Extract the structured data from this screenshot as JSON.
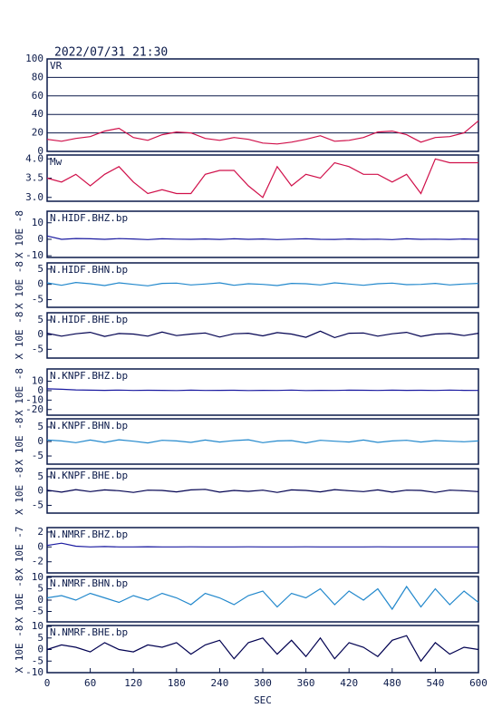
{
  "header": {
    "title": "2022/07/31 21:30"
  },
  "chart_data": [
    {
      "type": "line",
      "title": "VR",
      "ylim": [
        0,
        100
      ],
      "yticks": [
        0,
        20,
        40,
        60,
        80,
        100
      ],
      "grid": true,
      "xlim": [
        0,
        600
      ],
      "x": [
        0,
        20,
        40,
        60,
        80,
        100,
        120,
        140,
        160,
        180,
        200,
        220,
        240,
        260,
        280,
        300,
        320,
        340,
        360,
        380,
        400,
        420,
        440,
        460,
        480,
        500,
        520,
        540,
        560,
        580,
        600
      ],
      "series": [
        {
          "color": "#d0104a",
          "values": [
            13,
            11,
            14,
            16,
            22,
            25,
            15,
            12,
            18,
            21,
            20,
            14,
            12,
            15,
            13,
            9,
            8,
            10,
            13,
            17,
            11,
            12,
            15,
            21,
            22,
            18,
            10,
            15,
            16,
            20,
            33
          ]
        }
      ]
    },
    {
      "type": "line",
      "title": "Mw",
      "ylim": [
        2.9,
        4.1
      ],
      "yticks": [
        {
          "value": 3,
          "label": "3.0"
        },
        3.5,
        {
          "value": 4,
          "label": "4.0"
        }
      ],
      "grid": false,
      "xlim": [
        0,
        600
      ],
      "x": [
        0,
        20,
        40,
        60,
        80,
        100,
        120,
        140,
        160,
        180,
        200,
        220,
        240,
        260,
        280,
        300,
        320,
        340,
        360,
        380,
        400,
        420,
        440,
        460,
        480,
        500,
        520,
        540,
        560,
        580,
        600
      ],
      "series": [
        {
          "color": "#d0104a",
          "values": [
            3.5,
            3.4,
            3.6,
            3.3,
            3.6,
            3.8,
            3.4,
            3.1,
            3.2,
            3.1,
            3.1,
            3.6,
            3.7,
            3.7,
            3.3,
            3.0,
            3.8,
            3.3,
            3.6,
            3.5,
            3.9,
            3.8,
            3.6,
            3.6,
            3.4,
            3.6,
            3.1,
            4.0,
            3.9,
            3.9,
            3.9
          ]
        }
      ]
    },
    {
      "type": "line",
      "title": "N.HIDF.BHZ.bp",
      "ylabel": "X 10E -8",
      "ylim": [
        -11,
        17
      ],
      "yticks": [
        -10,
        0,
        10
      ],
      "grid": false,
      "xlim": [
        0,
        600
      ],
      "x": [
        0,
        20,
        40,
        60,
        80,
        100,
        120,
        140,
        160,
        180,
        200,
        220,
        240,
        260,
        280,
        300,
        320,
        340,
        360,
        380,
        400,
        420,
        440,
        460,
        480,
        500,
        520,
        540,
        560,
        580,
        600
      ],
      "series": [
        {
          "color": "#1a1aa0",
          "values": [
            2,
            0,
            0.5,
            0.3,
            0,
            0.4,
            0.2,
            -0.2,
            0.3,
            0.1,
            0,
            0.2,
            -0.1,
            0.3,
            0,
            0.2,
            -0.2,
            0.1,
            0.3,
            0,
            -0.1,
            0.2,
            0,
            0.1,
            -0.2,
            0.3,
            0,
            0.1,
            -0.1,
            0.2,
            0
          ]
        }
      ]
    },
    {
      "type": "line",
      "title": "N.HIDF.BHN.bp",
      "ylabel": "X 10E -8",
      "ylim": [
        -7.5,
        7
      ],
      "yticks": [
        -5,
        0,
        5
      ],
      "grid": false,
      "xlim": [
        0,
        600
      ],
      "x": [
        0,
        20,
        40,
        60,
        80,
        100,
        120,
        140,
        160,
        180,
        200,
        220,
        240,
        260,
        280,
        300,
        320,
        340,
        360,
        380,
        400,
        420,
        440,
        460,
        480,
        500,
        520,
        540,
        560,
        580,
        600
      ],
      "series": [
        {
          "color": "#2288cc",
          "values": [
            0.5,
            -0.3,
            0.6,
            0.2,
            -0.4,
            0.5,
            0,
            -0.5,
            0.3,
            0.4,
            -0.2,
            0.1,
            0.5,
            -0.3,
            0.2,
            0,
            -0.4,
            0.3,
            0.2,
            -0.2,
            0.5,
            0.1,
            -0.3,
            0.2,
            0.4,
            -0.1,
            0,
            0.3,
            -0.2,
            0.1,
            0.3
          ]
        }
      ]
    },
    {
      "type": "line",
      "title": "N.HIDF.BHE.bp",
      "ylabel": "X 10E -8",
      "ylim": [
        -8,
        7.5
      ],
      "yticks": [
        -5,
        0,
        5
      ],
      "grid": false,
      "xlim": [
        0,
        600
      ],
      "x": [
        0,
        20,
        40,
        60,
        80,
        100,
        120,
        140,
        160,
        180,
        200,
        220,
        240,
        260,
        280,
        300,
        320,
        340,
        360,
        380,
        400,
        420,
        440,
        460,
        480,
        500,
        520,
        540,
        560,
        580,
        600
      ],
      "series": [
        {
          "color": "#000050",
          "values": [
            0.5,
            -0.5,
            0.3,
            0.8,
            -0.6,
            0.4,
            0.2,
            -0.5,
            0.9,
            -0.3,
            0.2,
            0.6,
            -0.8,
            0.3,
            0.5,
            -0.4,
            0.7,
            0.2,
            -0.9,
            1.2,
            -1,
            0.5,
            0.6,
            -0.5,
            0.3,
            0.8,
            -0.6,
            0.2,
            0.4,
            -0.3,
            0.5
          ]
        }
      ]
    },
    {
      "type": "line",
      "title": "N.KNPF.BHZ.bp",
      "ylabel": "X 10E -8",
      "ylim": [
        -26,
        23
      ],
      "yticks": [
        -20,
        -10,
        0,
        10
      ],
      "grid": false,
      "xlim": [
        0,
        600
      ],
      "x": [
        0,
        20,
        40,
        60,
        80,
        100,
        120,
        140,
        160,
        180,
        200,
        220,
        240,
        260,
        280,
        300,
        320,
        340,
        360,
        380,
        400,
        420,
        440,
        460,
        480,
        500,
        520,
        540,
        560,
        580,
        600
      ],
      "series": [
        {
          "color": "#1a1aa0",
          "values": [
            2,
            1.5,
            0.8,
            0.5,
            0.3,
            0.6,
            0.2,
            0.4,
            0.3,
            0.1,
            0.5,
            0.2,
            0.3,
            0.4,
            0.1,
            0.3,
            0.2,
            0.6,
            0.1,
            0.3,
            0.2,
            0.5,
            0.4,
            0.2,
            0.5,
            0.3,
            0.4,
            0.2,
            0.6,
            0.3,
            0.2
          ]
        }
      ]
    },
    {
      "type": "line",
      "title": "N.KNPF.BHN.bp",
      "ylabel": "X 10E -8",
      "ylim": [
        -7.8,
        7.8
      ],
      "yticks": [
        -5,
        0,
        5
      ],
      "grid": false,
      "xlim": [
        0,
        600
      ],
      "x": [
        0,
        20,
        40,
        60,
        80,
        100,
        120,
        140,
        160,
        180,
        200,
        220,
        240,
        260,
        280,
        300,
        320,
        340,
        360,
        380,
        400,
        420,
        440,
        460,
        480,
        500,
        520,
        540,
        560,
        580,
        600
      ],
      "series": [
        {
          "color": "#2288cc",
          "values": [
            0.5,
            0.2,
            -0.4,
            0.5,
            -0.3,
            0.6,
            0.1,
            -0.5,
            0.4,
            0.2,
            -0.3,
            0.5,
            -0.2,
            0.3,
            0.6,
            -0.4,
            0.2,
            0.3,
            -0.5,
            0.4,
            0.1,
            -0.2,
            0.5,
            -0.3,
            0.2,
            0.4,
            -0.2,
            0.3,
            0.1,
            -0.1,
            0.2
          ]
        }
      ]
    },
    {
      "type": "line",
      "title": "N.KNPF.BHE.bp",
      "ylabel": "X 10E -8",
      "ylim": [
        -7.7,
        7.8
      ],
      "yticks": [
        -5,
        0,
        5
      ],
      "grid": false,
      "xlim": [
        0,
        600
      ],
      "x": [
        0,
        20,
        40,
        60,
        80,
        100,
        120,
        140,
        160,
        180,
        200,
        220,
        240,
        260,
        280,
        300,
        320,
        340,
        360,
        380,
        400,
        420,
        440,
        460,
        480,
        500,
        520,
        540,
        560,
        580,
        600
      ],
      "series": [
        {
          "color": "#000050",
          "values": [
            0.3,
            -0.4,
            0.5,
            -0.2,
            0.4,
            0.1,
            -0.5,
            0.3,
            0.2,
            -0.3,
            0.4,
            0.6,
            -0.4,
            0.2,
            -0.1,
            0.3,
            -0.5,
            0.4,
            0.2,
            -0.3,
            0.5,
            0.1,
            -0.2,
            0.4,
            -0.4,
            0.3,
            0.2,
            -0.5,
            0.3,
            0.1,
            -0.2
          ]
        }
      ]
    },
    {
      "type": "line",
      "title": "N.NMRF.BHZ.bp",
      "ylabel": "X 10E -7",
      "ylim": [
        -3.5,
        2.6
      ],
      "yticks": [
        -2,
        0,
        2
      ],
      "grid": false,
      "xlim": [
        0,
        600
      ],
      "x": [
        0,
        20,
        40,
        60,
        80,
        100,
        120,
        140,
        160,
        180,
        200,
        220,
        240,
        260,
        280,
        300,
        320,
        340,
        360,
        380,
        400,
        420,
        440,
        460,
        480,
        500,
        520,
        540,
        560,
        580,
        600
      ],
      "series": [
        {
          "color": "#1a1aa0",
          "values": [
            0.2,
            0.5,
            0.1,
            0,
            0.05,
            0,
            0,
            0.02,
            0,
            0,
            0.01,
            0,
            0,
            0,
            0.01,
            0,
            0,
            0,
            0.01,
            0,
            0,
            0,
            0,
            0.01,
            0,
            0,
            0,
            0,
            0,
            0,
            0
          ]
        }
      ]
    },
    {
      "type": "line",
      "title": "N.NMRF.BHN.bp",
      "ylabel": "X 10E -8",
      "ylim": [
        -9.6,
        10.4
      ],
      "yticks": [
        -5,
        0,
        5,
        10
      ],
      "grid": false,
      "xlim": [
        0,
        600
      ],
      "x": [
        0,
        20,
        40,
        60,
        80,
        100,
        120,
        140,
        160,
        180,
        200,
        220,
        240,
        260,
        280,
        300,
        320,
        340,
        360,
        380,
        400,
        420,
        440,
        460,
        480,
        500,
        520,
        540,
        560,
        580,
        600
      ],
      "series": [
        {
          "color": "#2288cc",
          "values": [
            1,
            2,
            0,
            3,
            1,
            -1,
            2,
            0,
            3,
            1,
            -2,
            3,
            1,
            -2,
            2,
            4,
            -3,
            3,
            1,
            5,
            -2,
            4,
            0,
            5,
            -4,
            6,
            -3,
            5,
            -2,
            4,
            -1
          ]
        }
      ]
    },
    {
      "type": "line",
      "title": "N.NMRF.BHE.bp",
      "ylabel": "X 10E -8",
      "ylim": [
        -10,
        10.4
      ],
      "yticks": [
        -10,
        -5,
        0,
        5,
        10
      ],
      "grid": false,
      "xlim": [
        0,
        600
      ],
      "xlabel": "SEC",
      "xticks": [
        0,
        60,
        120,
        180,
        240,
        300,
        360,
        420,
        480,
        540,
        600
      ],
      "x": [
        0,
        20,
        40,
        60,
        80,
        100,
        120,
        140,
        160,
        180,
        200,
        220,
        240,
        260,
        280,
        300,
        320,
        340,
        360,
        380,
        400,
        420,
        440,
        460,
        480,
        500,
        520,
        540,
        560,
        580,
        600
      ],
      "series": [
        {
          "color": "#000050",
          "values": [
            0,
            2,
            1,
            -1,
            3,
            0,
            -1,
            2,
            1,
            3,
            -2,
            2,
            4,
            -4,
            3,
            5,
            -2,
            4,
            -3,
            5,
            -4,
            3,
            1,
            -3,
            4,
            6,
            -5,
            3,
            -2,
            1,
            0
          ]
        }
      ]
    }
  ]
}
